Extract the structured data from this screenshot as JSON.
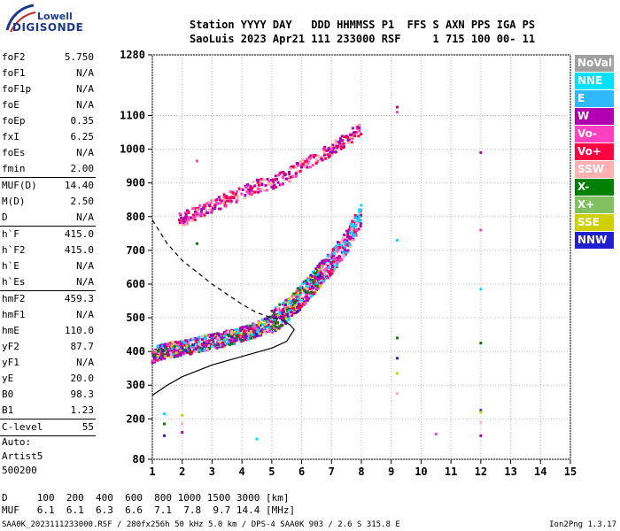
{
  "logo": {
    "line1": "Lowell",
    "line2": "DIGISONDE"
  },
  "header": {
    "line1": "Station YYYY DAY   DDD HHMMSS P1  FFS S AXN PPS IGA PS",
    "line2": "SaoLuis 2023 Apr21 111 233000 RSF     1 715 100 00- 11"
  },
  "params": [
    {
      "k": "foF2",
      "v": "5.750"
    },
    {
      "k": "foF1",
      "v": "N/A"
    },
    {
      "k": "foF1p",
      "v": "N/A"
    },
    {
      "k": "foE",
      "v": "N/A"
    },
    {
      "k": "foEp",
      "v": "0.35"
    },
    {
      "k": "fxI",
      "v": "6.25"
    },
    {
      "k": "foEs",
      "v": "N/A"
    },
    {
      "k": "fmin",
      "v": "2.00"
    },
    {
      "k": "MUF(D)",
      "v": "14.40"
    },
    {
      "k": "M(D)",
      "v": "2.50"
    },
    {
      "k": "D",
      "v": "N/A"
    },
    {
      "k": "h`F",
      "v": "415.0"
    },
    {
      "k": "h`F2",
      "v": "415.0"
    },
    {
      "k": "h`E",
      "v": "N/A"
    },
    {
      "k": "h`Es",
      "v": "N/A"
    },
    {
      "k": "hmF2",
      "v": "459.3"
    },
    {
      "k": "hmF1",
      "v": "N/A"
    },
    {
      "k": "hmE",
      "v": "110.0"
    },
    {
      "k": "yF2",
      "v": "87.7"
    },
    {
      "k": "yF1",
      "v": "N/A"
    },
    {
      "k": "yE",
      "v": "20.0"
    },
    {
      "k": "B0",
      "v": "98.3"
    },
    {
      "k": "B1",
      "v": "1.23"
    },
    {
      "k": "C-level",
      "v": "55"
    }
  ],
  "auto": {
    "line1": "Auto:",
    "line2": "Artist5",
    "line3": "500200"
  },
  "legend": [
    {
      "label": "NoVal",
      "color": "#a0a0a0"
    },
    {
      "label": "NNE",
      "color": "#00e0ff"
    },
    {
      "label": "E",
      "color": "#30b8ff"
    },
    {
      "label": "W",
      "color": "#b000b0"
    },
    {
      "label": "Vo-",
      "color": "#ff40c0"
    },
    {
      "label": "Vo+",
      "color": "#ff0040"
    },
    {
      "label": "SSW",
      "color": "#ffb0b0"
    },
    {
      "label": "X-",
      "color": "#008000"
    },
    {
      "label": "X+",
      "color": "#80c060"
    },
    {
      "label": "SSE",
      "color": "#d0d000"
    },
    {
      "label": "NNW",
      "color": "#2020d0"
    }
  ],
  "bottom": {
    "line1": "D     100  200  400  600  800 1000 1500 3000 [km]",
    "line2": "MUF   6.1  6.1  6.3  6.6  7.1  7.8  9.7 14.4 [MHz]"
  },
  "footer": "SAA0K_2023111233000.RSF / 280fx256h 50 kHz 5.0 km / DPS-4 SAA0K 903 / 2.6 S 315.8 E",
  "version": "Ion2Png 1.3.17",
  "chart_data": {
    "type": "scatter",
    "xlim": [
      1,
      15
    ],
    "ylim": [
      80,
      1280
    ],
    "x_ticks": [
      "1",
      "2",
      "3",
      "4",
      "5",
      "6",
      "7",
      "8",
      "9",
      "10",
      "11",
      "12",
      "13",
      "14",
      "15"
    ],
    "y_ticks": [
      "80",
      "200",
      "300",
      "400",
      "500",
      "600",
      "700",
      "800",
      "900",
      "1000",
      "1100",
      "1280"
    ],
    "y_tick_values": [
      80,
      200,
      300,
      400,
      500,
      600,
      700,
      800,
      900,
      1000,
      1100,
      1280
    ],
    "traces": [
      {
        "name": "O-trace",
        "points": [
          [
            1.0,
            380
          ],
          [
            1.5,
            395
          ],
          [
            2.0,
            400
          ],
          [
            2.5,
            410
          ],
          [
            3.0,
            420
          ],
          [
            3.5,
            430
          ],
          [
            4.0,
            440
          ],
          [
            4.5,
            455
          ],
          [
            5.0,
            475
          ],
          [
            5.5,
            505
          ],
          [
            6.0,
            550
          ],
          [
            6.5,
            600
          ],
          [
            7.0,
            650
          ],
          [
            7.5,
            710
          ],
          [
            8.0,
            790
          ]
        ]
      },
      {
        "name": "second-hop",
        "points": [
          [
            1.9,
            790
          ],
          [
            2.5,
            810
          ],
          [
            3.0,
            830
          ],
          [
            3.5,
            850
          ],
          [
            4.0,
            870
          ],
          [
            4.5,
            890
          ],
          [
            5.0,
            900
          ],
          [
            5.5,
            920
          ],
          [
            6.0,
            950
          ],
          [
            6.5,
            975
          ],
          [
            7.0,
            1000
          ],
          [
            7.5,
            1030
          ],
          [
            8.0,
            1060
          ]
        ]
      }
    ],
    "profile_solid": [
      [
        1.0,
        270
      ],
      [
        1.5,
        300
      ],
      [
        2.0,
        325
      ],
      [
        3.0,
        360
      ],
      [
        4.0,
        385
      ],
      [
        5.0,
        410
      ],
      [
        5.5,
        430
      ],
      [
        5.75,
        465
      ],
      [
        5.6,
        480
      ],
      [
        5.3,
        495
      ]
    ],
    "profile_dashed": [
      [
        1.0,
        790
      ],
      [
        1.5,
        720
      ],
      [
        2.0,
        670
      ],
      [
        3.0,
        600
      ],
      [
        4.0,
        540
      ],
      [
        4.5,
        515
      ],
      [
        5.0,
        500
      ],
      [
        5.3,
        495
      ]
    ],
    "isolated": [
      [
        9.2,
        1125
      ],
      [
        9.2,
        1110
      ],
      [
        9.2,
        730
      ],
      [
        9.2,
        440
      ],
      [
        9.2,
        380
      ],
      [
        9.2,
        335
      ],
      [
        9.2,
        275
      ],
      [
        12.0,
        990
      ],
      [
        12.0,
        760
      ],
      [
        12.0,
        585
      ],
      [
        12.0,
        425
      ],
      [
        12.0,
        225
      ],
      [
        12.0,
        220
      ],
      [
        12.0,
        190
      ],
      [
        12.0,
        150
      ],
      [
        10.5,
        155
      ],
      [
        1.4,
        215
      ],
      [
        1.4,
        185
      ],
      [
        1.4,
        150
      ],
      [
        2.0,
        210
      ],
      [
        2.0,
        185
      ],
      [
        2.0,
        160
      ],
      [
        2.5,
        965
      ],
      [
        4.5,
        140
      ],
      [
        2.5,
        720
      ]
    ]
  }
}
